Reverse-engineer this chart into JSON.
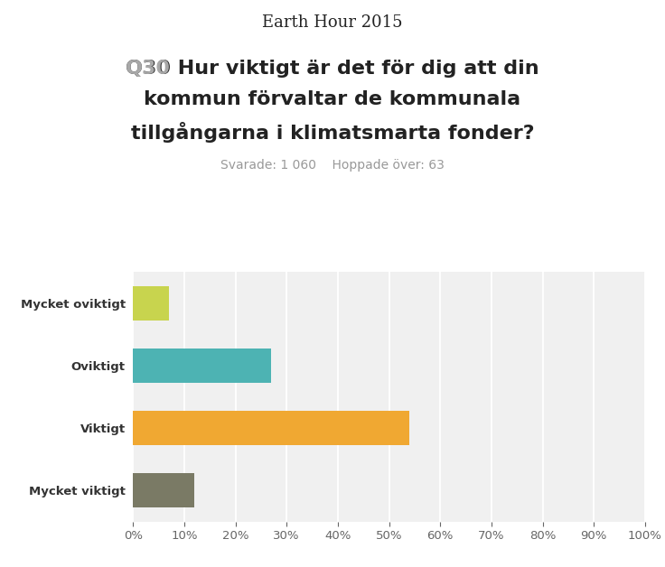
{
  "title": "Earth Hour 2015",
  "question_prefix": "Q30",
  "question_prefix_color": "#a8a8a8",
  "question_line1": " Hur viktigt är det för dig att din",
  "question_line2": "kommun förvaltar de kommunala",
  "question_line3": "tillgångarna i klimatsmarta fonder?",
  "subtitle": "Svarade: 1 060    Hoppade över: 63",
  "categories": [
    "Mycket oviktigt",
    "Oviktigt",
    "Viktigt",
    "Mycket viktigt"
  ],
  "values": [
    7,
    27,
    54,
    12
  ],
  "bar_colors": [
    "#c8d44e",
    "#4db3b3",
    "#f0a832",
    "#7a7a65"
  ],
  "background_color": "#f0f0f0",
  "bar_height": 0.55,
  "xlim": [
    0,
    100
  ],
  "xticks": [
    0,
    10,
    20,
    30,
    40,
    50,
    60,
    70,
    80,
    90,
    100
  ],
  "title_fontsize": 13,
  "question_fontsize": 16,
  "subtitle_fontsize": 10,
  "label_fontsize": 9.5,
  "tick_fontsize": 9.5
}
